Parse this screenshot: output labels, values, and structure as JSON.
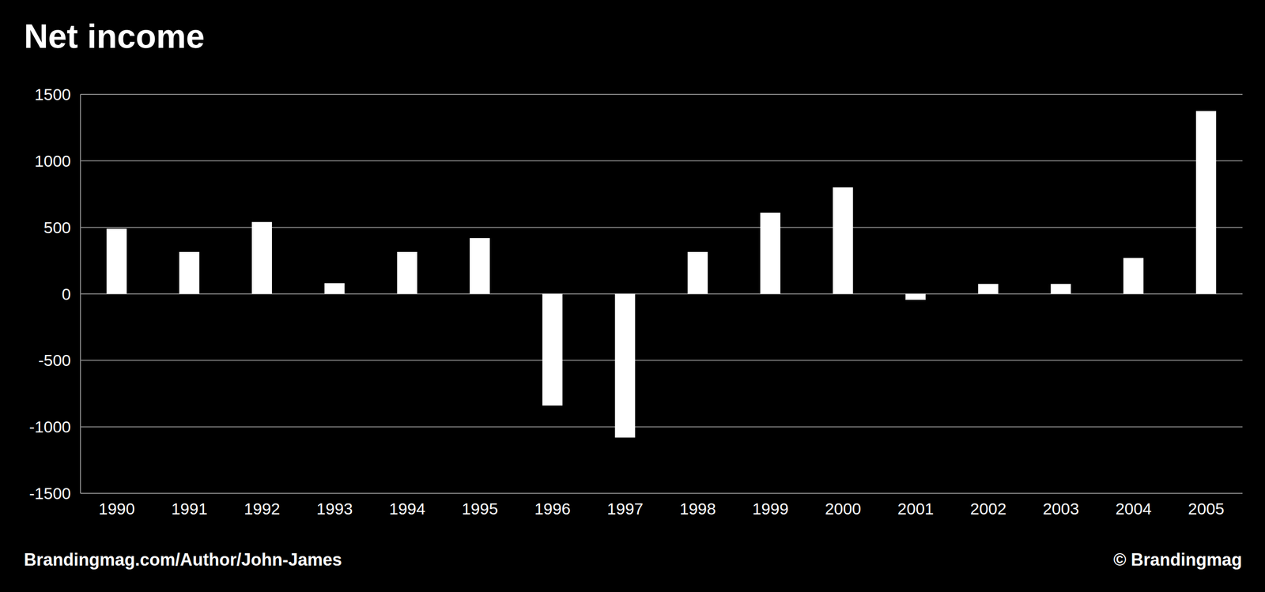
{
  "chart_data": {
    "type": "bar",
    "title": "Net income",
    "categories": [
      "1990",
      "1991",
      "1992",
      "1993",
      "1994",
      "1995",
      "1996",
      "1997",
      "1998",
      "1999",
      "2000",
      "2001",
      "2002",
      "2003",
      "2004",
      "2005"
    ],
    "values": [
      490,
      315,
      540,
      80,
      315,
      420,
      -840,
      -1080,
      315,
      610,
      800,
      -45,
      75,
      75,
      270,
      1375
    ],
    "color": "#ffffff",
    "ylim": [
      -1500,
      1500
    ],
    "yticks": [
      -1500,
      -1000,
      -500,
      0,
      500,
      1000,
      1500
    ],
    "grid": true,
    "source": "Brandingmag.com/Author/John-James",
    "copyright": "© Brandingmag"
  }
}
